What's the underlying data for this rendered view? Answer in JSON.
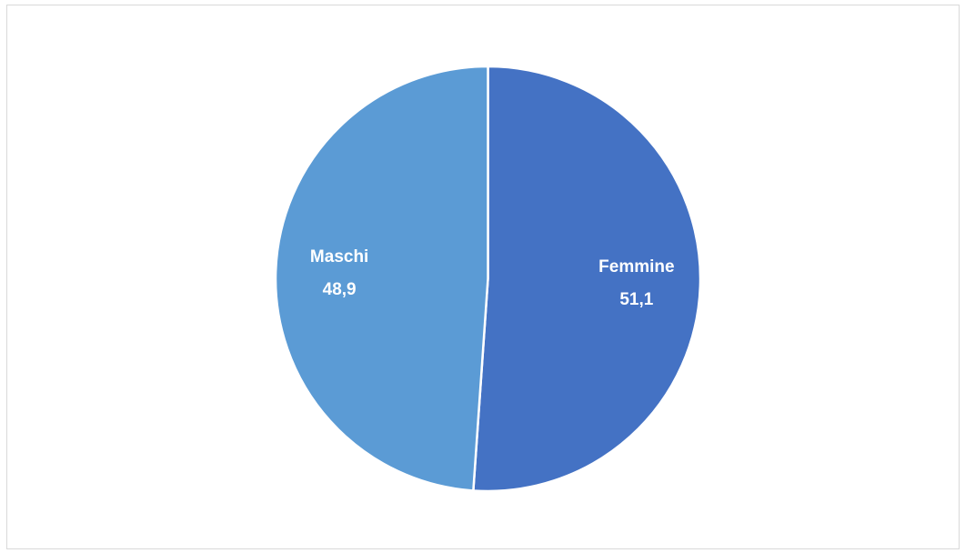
{
  "chart_data": {
    "type": "pie",
    "categories": [
      "Femmine",
      "Maschi"
    ],
    "values": [
      51.1,
      48.9
    ],
    "value_labels": [
      "51,1",
      "48,9"
    ],
    "colors": [
      "#4472c4",
      "#5b9bd5"
    ]
  }
}
